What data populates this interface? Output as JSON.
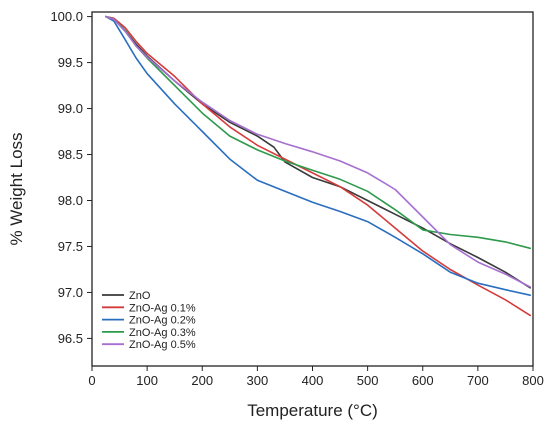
{
  "chart_data": {
    "type": "line",
    "xlabel": "Temperature (°C)",
    "ylabel": "% Weight Loss",
    "xlim": [
      0,
      800
    ],
    "ylim": [
      96.2,
      100.05
    ],
    "xticks": [
      0,
      100,
      200,
      300,
      400,
      500,
      600,
      700,
      800
    ],
    "yticks": [
      96.5,
      97.0,
      97.5,
      98.0,
      98.5,
      99.0,
      99.5,
      100.0
    ],
    "ytick_labels": [
      "96.5",
      "97.0",
      "97.5",
      "98.0",
      "98.5",
      "99.0",
      "99.5",
      "100.0"
    ],
    "grid": false,
    "legend_position": "bottom-left",
    "series": [
      {
        "name": "ZnO",
        "color": "#3a3a3a",
        "x": [
          25,
          40,
          60,
          80,
          100,
          150,
          200,
          250,
          300,
          330,
          350,
          400,
          450,
          500,
          550,
          600,
          650,
          700,
          750,
          795
        ],
        "y": [
          100.0,
          99.98,
          99.85,
          99.7,
          99.57,
          99.3,
          99.05,
          98.85,
          98.7,
          98.58,
          98.42,
          98.25,
          98.15,
          98.0,
          97.85,
          97.7,
          97.53,
          97.38,
          97.22,
          97.05
        ]
      },
      {
        "name": "ZnO-Ag 0.1%",
        "color": "#d43c3c",
        "x": [
          25,
          40,
          60,
          80,
          100,
          150,
          200,
          250,
          300,
          350,
          400,
          450,
          500,
          550,
          600,
          650,
          700,
          750,
          795
        ],
        "y": [
          100.0,
          99.98,
          99.88,
          99.73,
          99.6,
          99.35,
          99.05,
          98.8,
          98.6,
          98.45,
          98.3,
          98.15,
          97.95,
          97.7,
          97.45,
          97.25,
          97.08,
          96.92,
          96.75
        ]
      },
      {
        "name": "ZnO-Ag 0.2%",
        "color": "#2a6ec0",
        "x": [
          25,
          40,
          60,
          80,
          100,
          150,
          200,
          250,
          300,
          350,
          400,
          450,
          500,
          550,
          600,
          650,
          700,
          750,
          795
        ],
        "y": [
          100.0,
          99.95,
          99.75,
          99.55,
          99.38,
          99.05,
          98.75,
          98.45,
          98.22,
          98.1,
          97.98,
          97.88,
          97.77,
          97.6,
          97.42,
          97.22,
          97.1,
          97.03,
          96.97
        ]
      },
      {
        "name": "ZnO-Ag 0.3%",
        "color": "#2e9a4c",
        "x": [
          25,
          40,
          60,
          80,
          100,
          150,
          200,
          250,
          300,
          350,
          400,
          450,
          500,
          550,
          600,
          650,
          700,
          750,
          795
        ],
        "y": [
          100.0,
          99.97,
          99.85,
          99.68,
          99.55,
          99.25,
          98.95,
          98.7,
          98.55,
          98.43,
          98.33,
          98.23,
          98.1,
          97.9,
          97.68,
          97.63,
          97.6,
          97.55,
          97.48
        ]
      },
      {
        "name": "ZnO-Ag 0.5%",
        "color": "#a66fd0",
        "x": [
          25,
          40,
          60,
          80,
          100,
          150,
          200,
          250,
          300,
          350,
          400,
          450,
          500,
          550,
          600,
          650,
          700,
          750,
          795
        ],
        "y": [
          100.0,
          99.97,
          99.84,
          99.68,
          99.56,
          99.3,
          99.07,
          98.87,
          98.72,
          98.62,
          98.53,
          98.43,
          98.3,
          98.12,
          97.82,
          97.52,
          97.33,
          97.2,
          97.06
        ]
      }
    ]
  }
}
